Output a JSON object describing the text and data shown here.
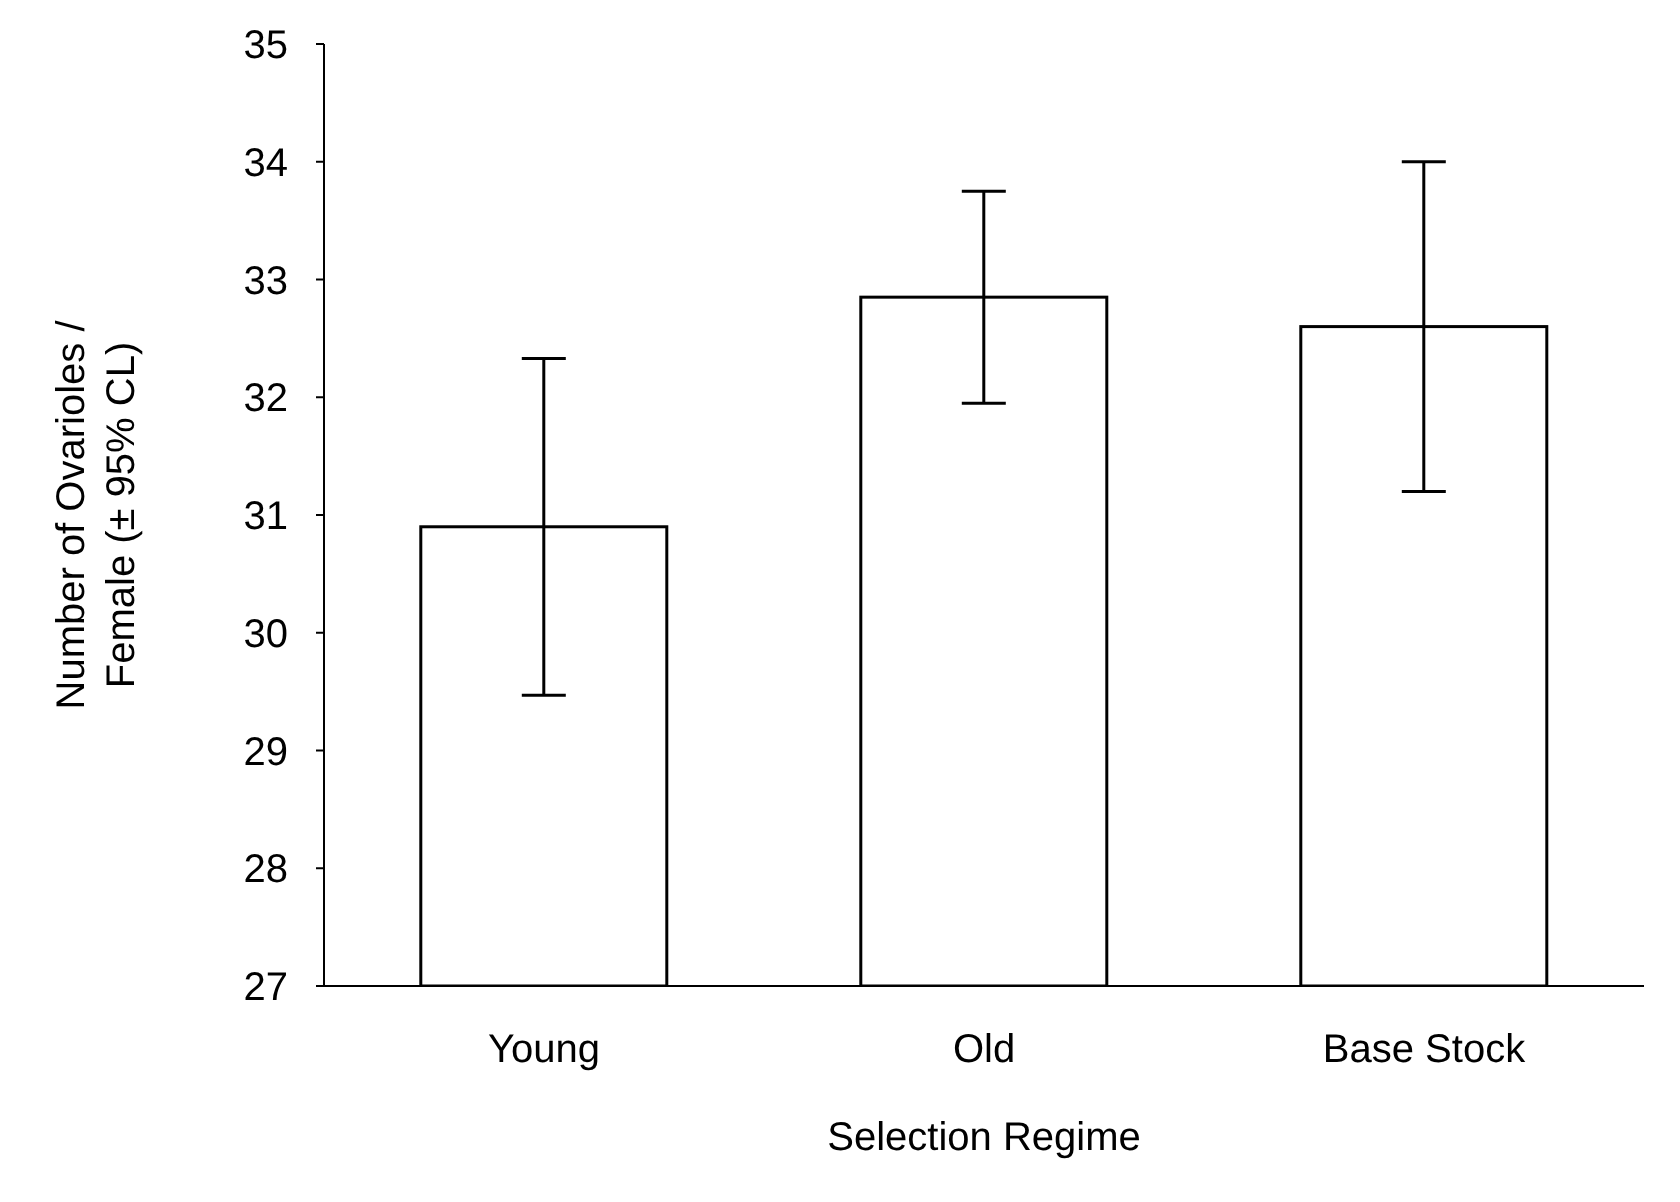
{
  "chart_data": {
    "type": "bar",
    "xlabel": "Selection Regime",
    "ylabel": "Number of Ovarioles /\nFemale (± 95% CL)",
    "categories": [
      "Young",
      "Old",
      "Base Stock"
    ],
    "values": [
      30.9,
      32.85,
      32.6
    ],
    "errors": [
      [
        29.47,
        32.33
      ],
      [
        31.95,
        33.75
      ],
      [
        31.2,
        34.0
      ]
    ],
    "color": "#ffffff",
    "ylim": [
      27,
      35
    ],
    "yticks": [
      27,
      28,
      29,
      30,
      31,
      32,
      33,
      34,
      35
    ],
    "grid": false
  }
}
